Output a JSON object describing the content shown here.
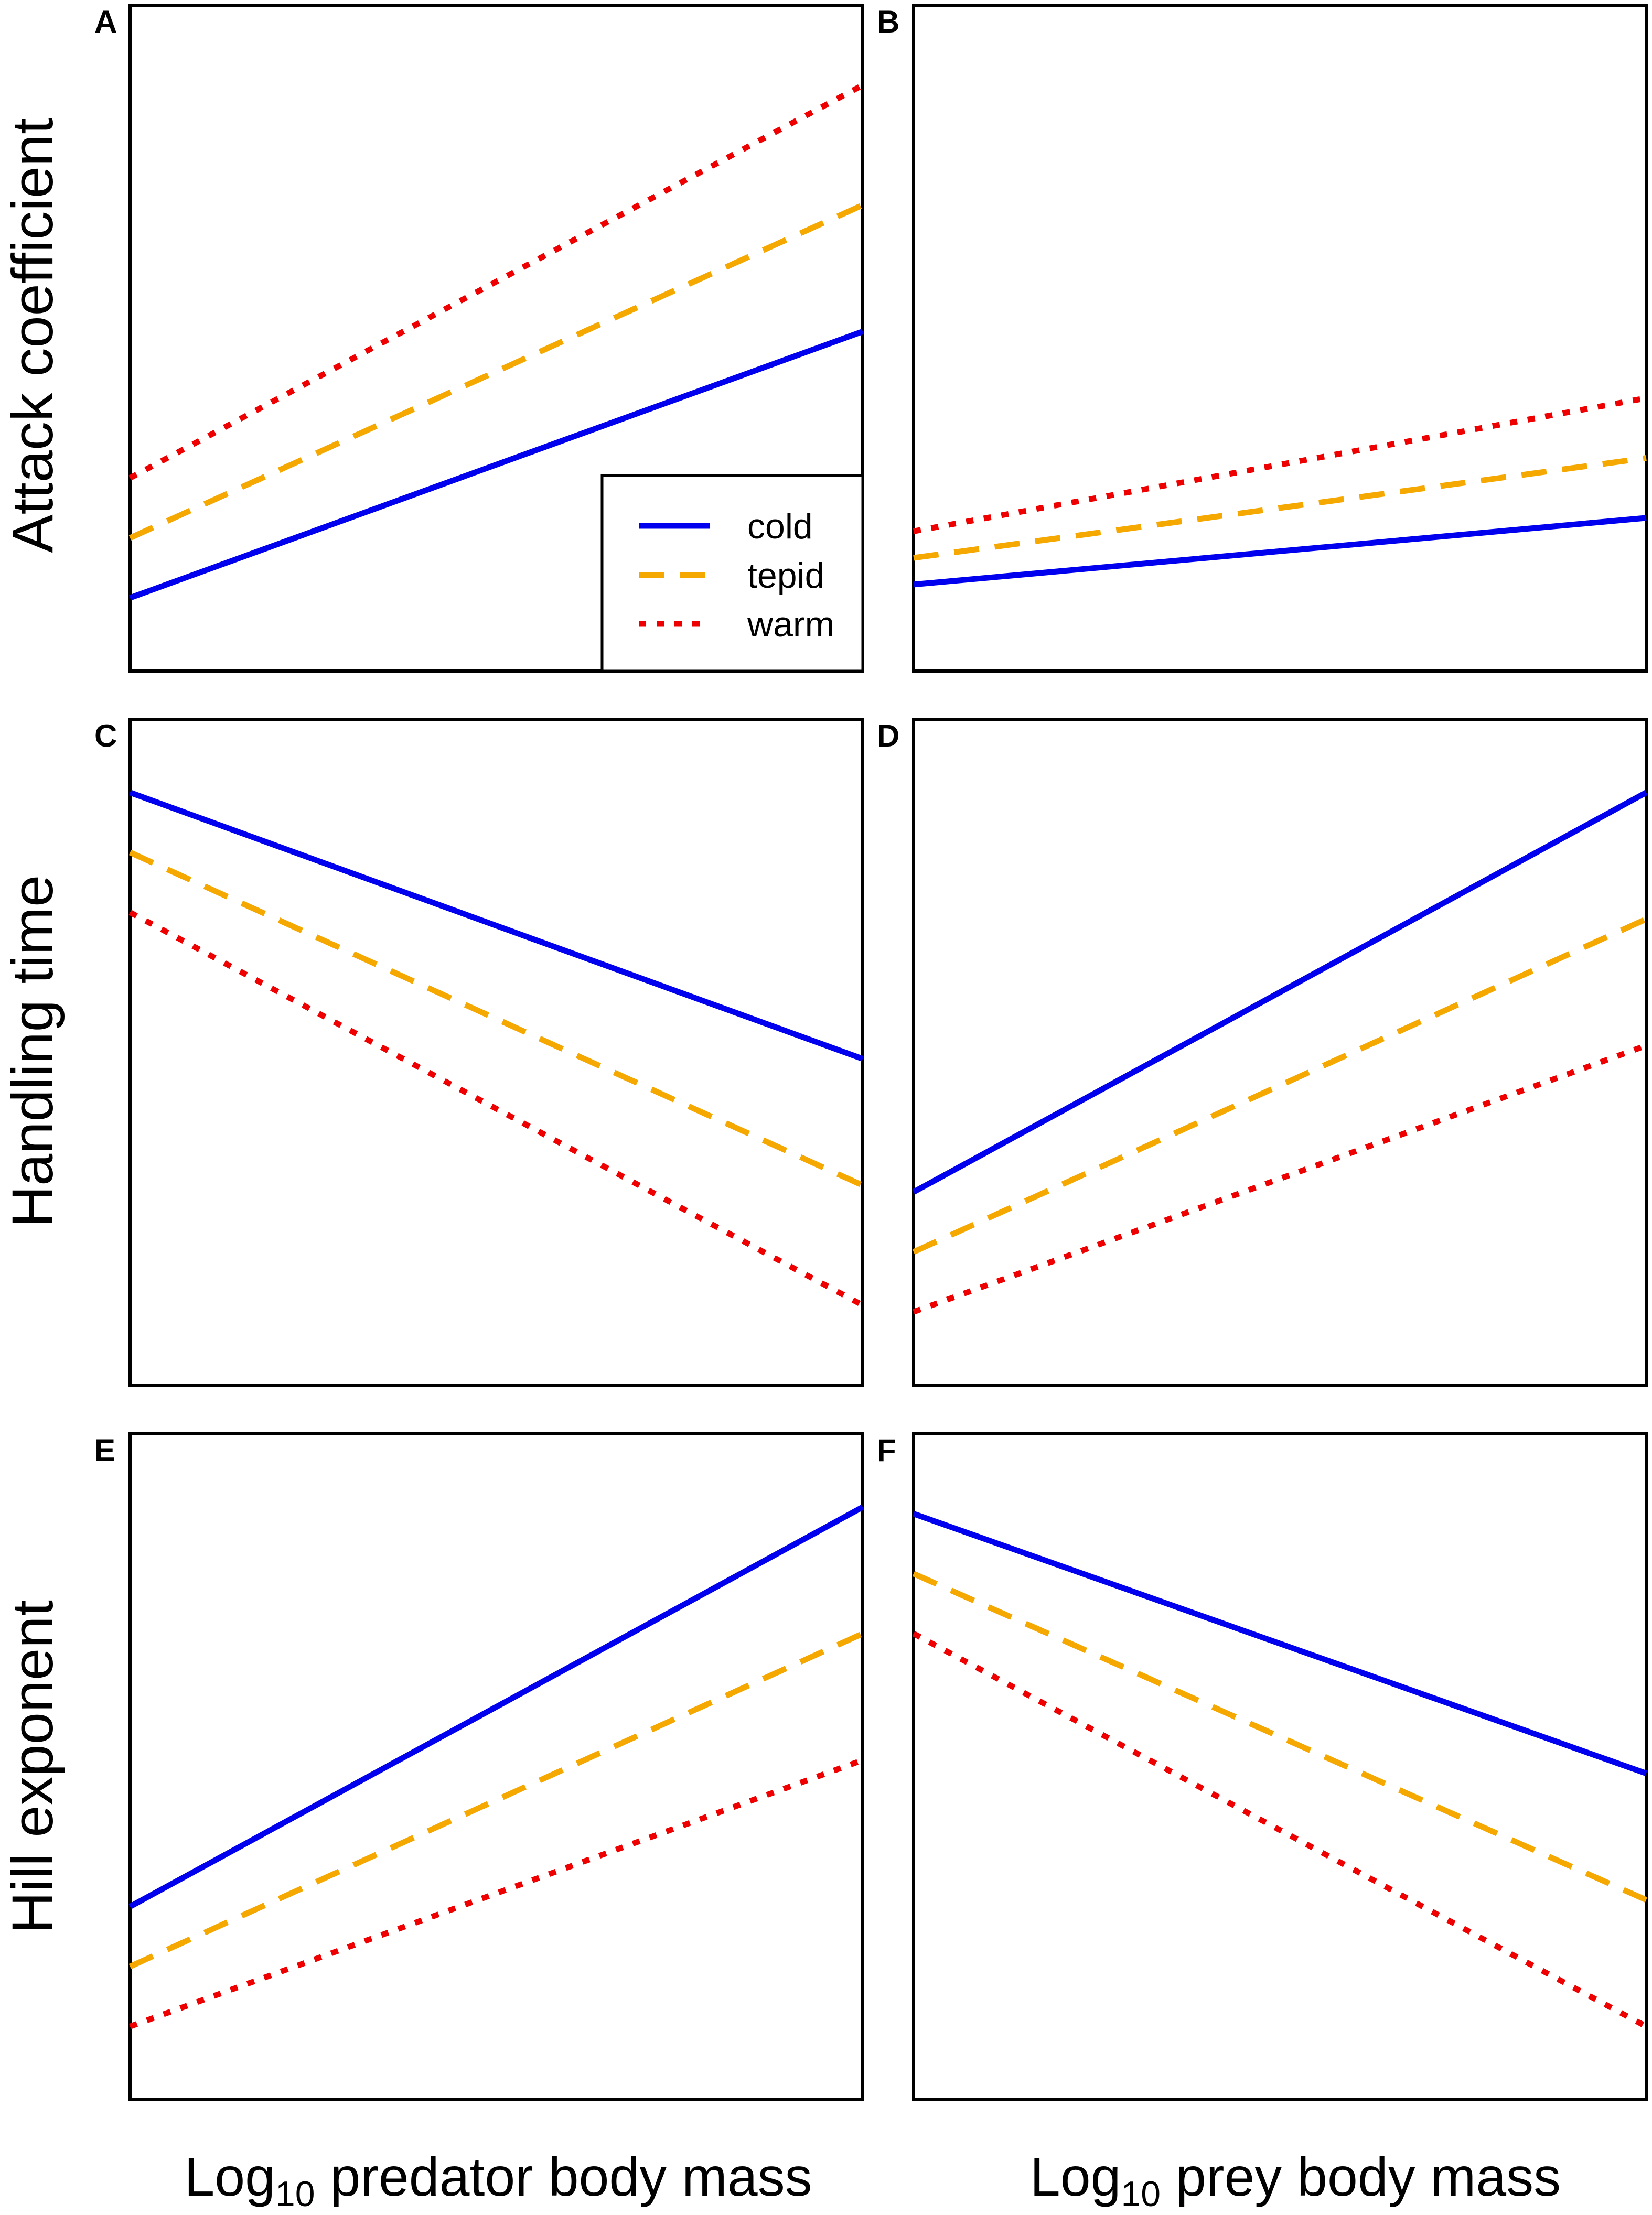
{
  "figure": {
    "row_labels": [
      "Attack coefficient",
      "Handling time",
      "Hill exponent"
    ],
    "col_labels": [
      {
        "prefix": "Log",
        "sub": "10",
        "suffix": " predator body mass"
      },
      {
        "prefix": "Log",
        "sub": "10",
        "suffix": " prey body mass"
      }
    ],
    "legend": [
      {
        "label": "cold",
        "color": "#0000ee",
        "style": "solid"
      },
      {
        "label": "tepid",
        "color": "#f5a800",
        "style": "dashed"
      },
      {
        "label": "warm",
        "color": "#ee0000",
        "style": "dotted"
      }
    ]
  },
  "chart_data": [
    {
      "panel": "A",
      "type": "line",
      "xlabel": "Log10 predator body mass",
      "ylabel": "Attack coefficient",
      "xlim": [
        0,
        1
      ],
      "ylim": [
        0,
        1
      ],
      "axes_ticks": false,
      "legend_position": "bottom-right",
      "series": [
        {
          "name": "cold",
          "x": [
            0,
            1
          ],
          "y": [
            0.11,
            0.51
          ]
        },
        {
          "name": "tepid",
          "x": [
            0,
            1
          ],
          "y": [
            0.2,
            0.7
          ]
        },
        {
          "name": "warm",
          "x": [
            0,
            1
          ],
          "y": [
            0.29,
            0.88
          ]
        }
      ]
    },
    {
      "panel": "B",
      "type": "line",
      "xlabel": "Log10 prey body mass",
      "ylabel": "Attack coefficient",
      "xlim": [
        0,
        1
      ],
      "ylim": [
        0,
        1
      ],
      "axes_ticks": false,
      "series": [
        {
          "name": "cold",
          "x": [
            0,
            1
          ],
          "y": [
            0.13,
            0.23
          ]
        },
        {
          "name": "tepid",
          "x": [
            0,
            1
          ],
          "y": [
            0.17,
            0.32
          ]
        },
        {
          "name": "warm",
          "x": [
            0,
            1
          ],
          "y": [
            0.21,
            0.41
          ]
        }
      ]
    },
    {
      "panel": "C",
      "type": "line",
      "xlabel": "Log10 predator body mass",
      "ylabel": "Handling time",
      "xlim": [
        0,
        1
      ],
      "ylim": [
        0,
        1
      ],
      "axes_ticks": false,
      "series": [
        {
          "name": "cold",
          "x": [
            0,
            1
          ],
          "y": [
            0.89,
            0.49
          ]
        },
        {
          "name": "tepid",
          "x": [
            0,
            1
          ],
          "y": [
            0.8,
            0.3
          ]
        },
        {
          "name": "warm",
          "x": [
            0,
            1
          ],
          "y": [
            0.71,
            0.12
          ]
        }
      ]
    },
    {
      "panel": "D",
      "type": "line",
      "xlabel": "Log10 prey body mass",
      "ylabel": "Handling time",
      "xlim": [
        0,
        1
      ],
      "ylim": [
        0,
        1
      ],
      "axes_ticks": false,
      "series": [
        {
          "name": "cold",
          "x": [
            0,
            1
          ],
          "y": [
            0.29,
            0.89
          ]
        },
        {
          "name": "tepid",
          "x": [
            0,
            1
          ],
          "y": [
            0.2,
            0.7
          ]
        },
        {
          "name": "warm",
          "x": [
            0,
            1
          ],
          "y": [
            0.11,
            0.51
          ]
        }
      ]
    },
    {
      "panel": "E",
      "type": "line",
      "xlabel": "Log10 predator body mass",
      "ylabel": "Hill exponent",
      "xlim": [
        0,
        1
      ],
      "ylim": [
        0,
        1
      ],
      "axes_ticks": false,
      "series": [
        {
          "name": "cold",
          "x": [
            0,
            1
          ],
          "y": [
            0.29,
            0.89
          ]
        },
        {
          "name": "tepid",
          "x": [
            0,
            1
          ],
          "y": [
            0.2,
            0.7
          ]
        },
        {
          "name": "warm",
          "x": [
            0,
            1
          ],
          "y": [
            0.11,
            0.51
          ]
        }
      ]
    },
    {
      "panel": "F",
      "type": "line",
      "xlabel": "Log10 prey body mass",
      "ylabel": "Hill exponent",
      "xlim": [
        0,
        1
      ],
      "ylim": [
        0,
        1
      ],
      "axes_ticks": false,
      "series": [
        {
          "name": "cold",
          "x": [
            0,
            1
          ],
          "y": [
            0.88,
            0.49
          ]
        },
        {
          "name": "tepid",
          "x": [
            0,
            1
          ],
          "y": [
            0.79,
            0.3
          ]
        },
        {
          "name": "warm",
          "x": [
            0,
            1
          ],
          "y": [
            0.7,
            0.11
          ]
        }
      ]
    }
  ]
}
